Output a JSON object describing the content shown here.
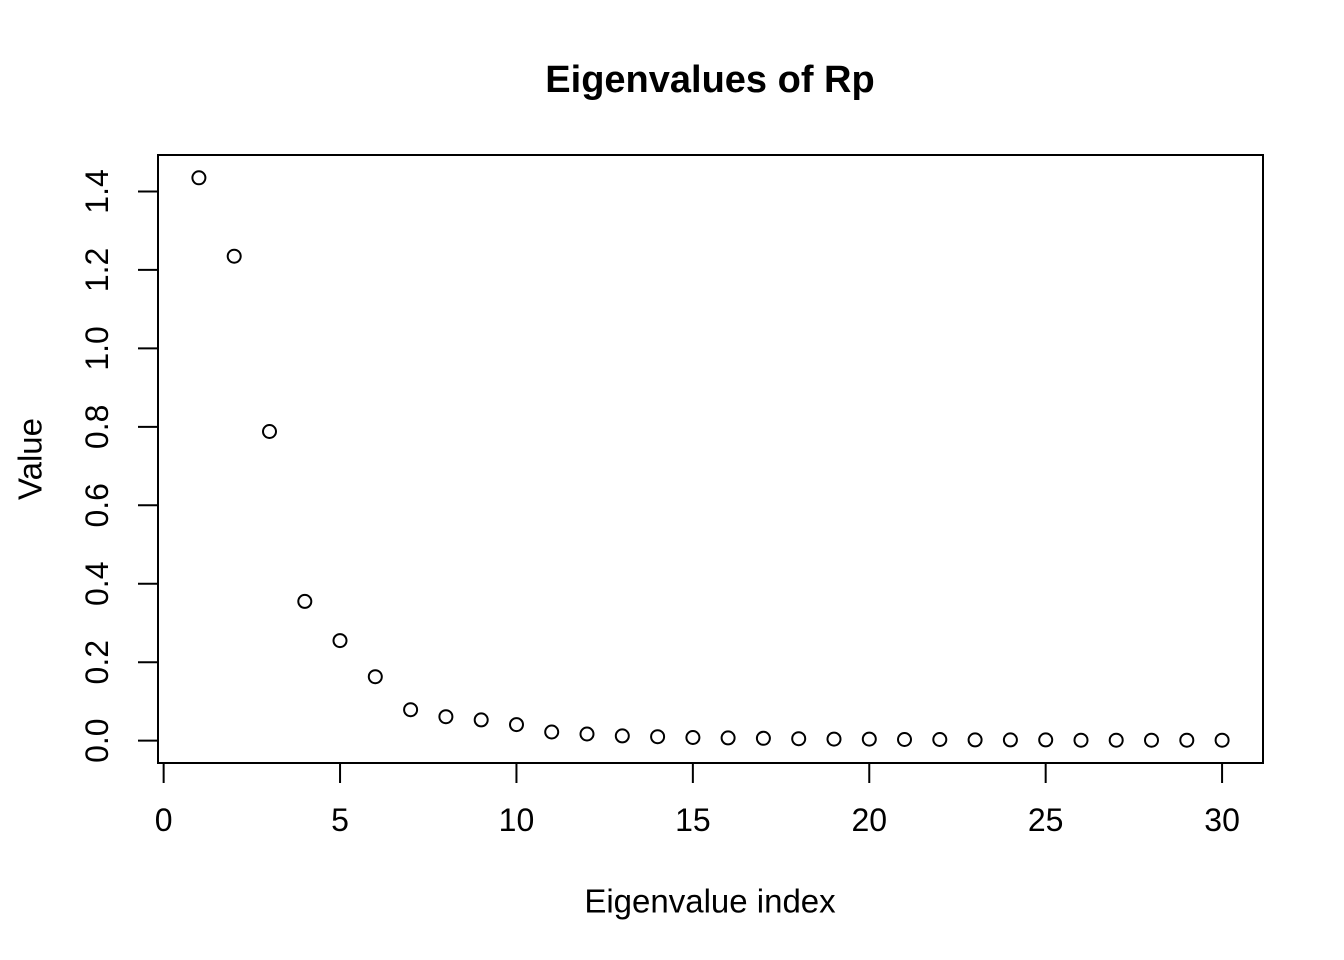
{
  "page": {
    "background_color": "#ffffff",
    "foreground_color": "#000000"
  },
  "chart_data": {
    "type": "scatter",
    "title": "Eigenvalues of Rp",
    "xlabel": "Eigenvalue index",
    "ylabel": "Value",
    "marker": "open-circle",
    "point_color": "#000000",
    "grid": false,
    "legend": null,
    "x_ticks": [
      0,
      5,
      10,
      15,
      20,
      25,
      30
    ],
    "y_ticks": [
      0.0,
      0.2,
      0.4,
      0.6,
      0.8,
      1.0,
      1.2,
      1.4
    ],
    "xlim": [
      -0.16,
      31.16
    ],
    "ylim": [
      -0.057,
      1.493
    ],
    "x": [
      1,
      2,
      3,
      4,
      5,
      6,
      7,
      8,
      9,
      10,
      11,
      12,
      13,
      14,
      15,
      16,
      17,
      18,
      19,
      20,
      21,
      22,
      23,
      24,
      25,
      26,
      27,
      28,
      29,
      30
    ],
    "y": [
      1.435,
      1.235,
      0.788,
      0.355,
      0.255,
      0.163,
      0.079,
      0.061,
      0.053,
      0.041,
      0.022,
      0.017,
      0.012,
      0.01,
      0.008,
      0.007,
      0.006,
      0.005,
      0.004,
      0.004,
      0.003,
      0.003,
      0.002,
      0.002,
      0.002,
      0.001,
      0.001,
      0.001,
      0.001,
      0.001
    ]
  }
}
